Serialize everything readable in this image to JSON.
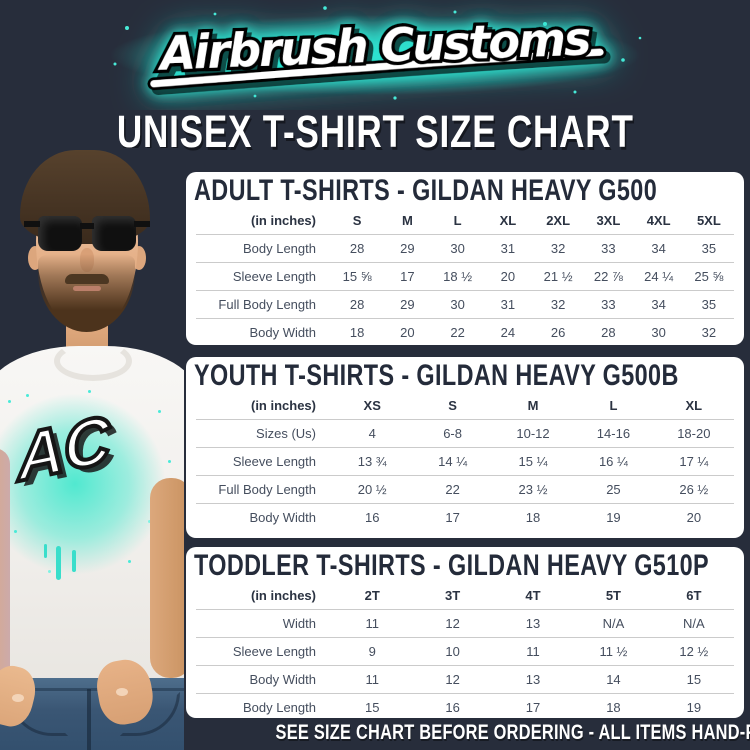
{
  "brand": {
    "logo_text": "Airbrush Customs"
  },
  "page_title": "UNISEX T-SHIRT SIZE CHART",
  "model": {
    "shirt_graphic_text": "AC"
  },
  "footer_note": "SEE SIZE CHART BEFORE ORDERING - ALL ITEMS HAND-PAINTED TO ORDER",
  "colors": {
    "background": "#272d3b",
    "card": "#ffffff",
    "accent_cyan": "#2ee5d2",
    "heading_navy": "#242b3a",
    "table_text": "#454e5e",
    "divider": "#cbcbcb"
  },
  "tables": [
    {
      "title": "ADULT T-SHIRTS - GILDAN HEAVY G500",
      "unit_label": "(in inches)",
      "columns": [
        "S",
        "M",
        "L",
        "XL",
        "2XL",
        "3XL",
        "4XL",
        "5XL"
      ],
      "rows": [
        {
          "label": "Body Length",
          "values": [
            "28",
            "29",
            "30",
            "31",
            "32",
            "33",
            "34",
            "35"
          ]
        },
        {
          "label": "Sleeve Length",
          "values": [
            "15 ⅝",
            "17",
            "18 ½",
            "20",
            "21 ½",
            "22 ⅞",
            "24 ¼",
            "25 ⅝"
          ]
        },
        {
          "label": "Full Body Length",
          "values": [
            "28",
            "29",
            "30",
            "31",
            "32",
            "33",
            "34",
            "35"
          ]
        },
        {
          "label": "Body Width",
          "values": [
            "18",
            "20",
            "22",
            "24",
            "26",
            "28",
            "30",
            "32"
          ]
        }
      ]
    },
    {
      "title": "YOUTH T-SHIRTS - GILDAN HEAVY G500B",
      "unit_label": "(in inches)",
      "columns": [
        "XS",
        "S",
        "M",
        "L",
        "XL"
      ],
      "rows": [
        {
          "label": "Sizes (Us)",
          "values": [
            "4",
            "6-8",
            "10-12",
            "14-16",
            "18-20"
          ]
        },
        {
          "label": "Sleeve Length",
          "values": [
            "13 ¾",
            "14 ¼",
            "15 ¼",
            "16 ¼",
            "17 ¼"
          ]
        },
        {
          "label": "Full Body Length",
          "values": [
            "20 ½",
            "22",
            "23 ½",
            "25",
            "26 ½"
          ]
        },
        {
          "label": "Body Width",
          "values": [
            "16",
            "17",
            "18",
            "19",
            "20"
          ]
        }
      ]
    },
    {
      "title": "TODDLER T-SHIRTS - GILDAN HEAVY G510P",
      "unit_label": "(in inches)",
      "columns": [
        "2T",
        "3T",
        "4T",
        "5T",
        "6T"
      ],
      "rows": [
        {
          "label": "Width",
          "values": [
            "11",
            "12",
            "13",
            "N/A",
            "N/A"
          ]
        },
        {
          "label": "Sleeve Length",
          "values": [
            "9",
            "10",
            "11",
            "11 ½",
            "12 ½"
          ]
        },
        {
          "label": "Body Width",
          "values": [
            "11",
            "12",
            "13",
            "14",
            "15"
          ]
        },
        {
          "label": "Body Length",
          "values": [
            "15",
            "16",
            "17",
            "18",
            "19"
          ]
        }
      ]
    }
  ]
}
